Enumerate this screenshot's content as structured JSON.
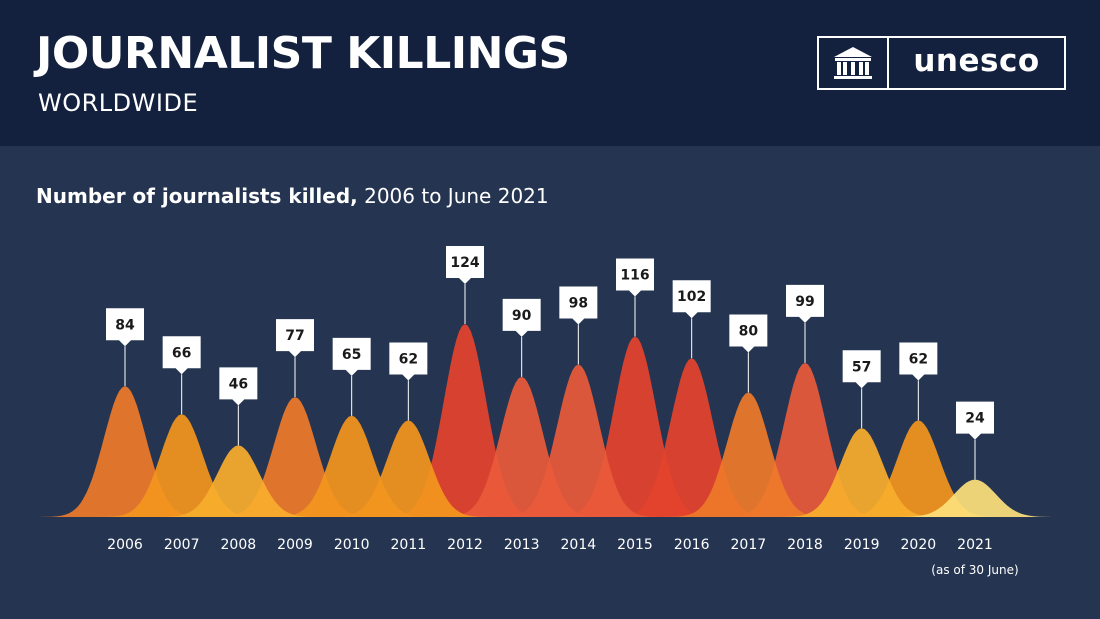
{
  "header": {
    "title": "JOURNALIST KILLINGS",
    "subtitle": "WORLDWIDE",
    "logo_text": "unesco",
    "logo_icon": "unesco-temple-icon"
  },
  "chart_title_bold": "Number of journalists killed,",
  "chart_title_light": "2006 to June 2021",
  "note": "(as of 30 June)",
  "colors": {
    "header_bg": "#13213f",
    "page_bg": "#253551",
    "label_box": "#ffffff",
    "label_text": "#1a1a1a"
  },
  "chart_data": {
    "type": "area",
    "categories": [
      "2006",
      "2007",
      "2008",
      "2009",
      "2010",
      "2011",
      "2012",
      "2013",
      "2014",
      "2015",
      "2016",
      "2017",
      "2018",
      "2019",
      "2020",
      "2021"
    ],
    "values": [
      84,
      66,
      46,
      77,
      65,
      62,
      124,
      90,
      98,
      116,
      102,
      80,
      99,
      57,
      62,
      24
    ],
    "point_colors": [
      "#ee7a2a",
      "#f3961e",
      "#f7ad2c",
      "#ee7a2a",
      "#f3961e",
      "#f3961e",
      "#e4442c",
      "#ea5a3a",
      "#ea5a3a",
      "#e4442c",
      "#e4442c",
      "#ee7a2a",
      "#ea5a3a",
      "#f7ad2c",
      "#f3961e",
      "#fde07a"
    ],
    "ylim": [
      0,
      124
    ],
    "grid": false,
    "legend": "none"
  }
}
